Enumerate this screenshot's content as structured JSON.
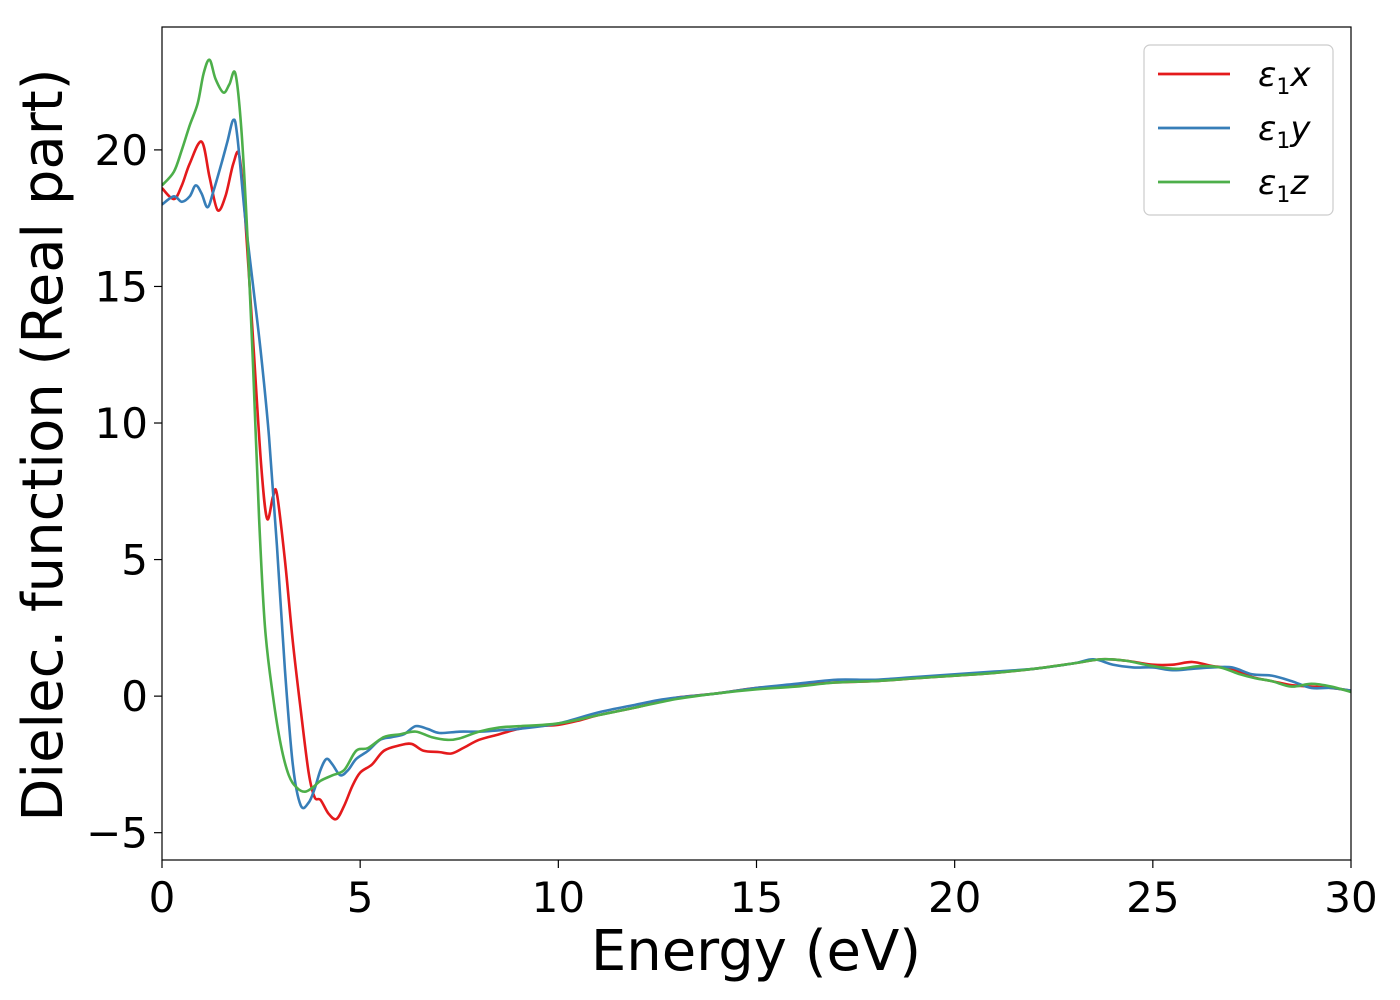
{
  "chart_data": {
    "type": "line",
    "title": "",
    "xlabel": "Energy (eV)",
    "ylabel": "Dielec. function (Real part)",
    "xlim": [
      0,
      30
    ],
    "ylim": [
      -6,
      24.5
    ],
    "xticks": [
      0,
      5,
      10,
      15,
      20,
      25,
      30
    ],
    "yticks": [
      -5,
      0,
      5,
      10,
      15,
      20
    ],
    "xtick_labels": [
      "0",
      "5",
      "10",
      "15",
      "20",
      "25",
      "30"
    ],
    "ytick_labels": [
      "−5",
      "0",
      "5",
      "10",
      "15",
      "20"
    ],
    "grid": false,
    "legend_position": "top-right",
    "series": [
      {
        "name": "ε1x",
        "legend": {
          "base": "ε",
          "sub": "1",
          "axis": "x"
        },
        "color": "#e41a1c",
        "points": [
          [
            0,
            18.6
          ],
          [
            0.3,
            18.2
          ],
          [
            0.5,
            18.7
          ],
          [
            0.7,
            19.5
          ],
          [
            1.0,
            20.3
          ],
          [
            1.2,
            19.0
          ],
          [
            1.4,
            17.8
          ],
          [
            1.6,
            18.3
          ],
          [
            1.8,
            19.5
          ],
          [
            1.95,
            19.8
          ],
          [
            2.1,
            17.5
          ],
          [
            2.3,
            13.0
          ],
          [
            2.5,
            8.5
          ],
          [
            2.65,
            6.5
          ],
          [
            2.8,
            7.3
          ],
          [
            2.9,
            7.4
          ],
          [
            3.1,
            5.0
          ],
          [
            3.3,
            2.0
          ],
          [
            3.5,
            -0.5
          ],
          [
            3.7,
            -2.8
          ],
          [
            3.85,
            -3.7
          ],
          [
            4.0,
            -3.8
          ],
          [
            4.2,
            -4.3
          ],
          [
            4.4,
            -4.5
          ],
          [
            4.6,
            -4.0
          ],
          [
            4.8,
            -3.3
          ],
          [
            5.0,
            -2.8
          ],
          [
            5.3,
            -2.5
          ],
          [
            5.6,
            -2.0
          ],
          [
            6.0,
            -1.8
          ],
          [
            6.3,
            -1.75
          ],
          [
            6.6,
            -2.0
          ],
          [
            7.0,
            -2.05
          ],
          [
            7.3,
            -2.1
          ],
          [
            7.6,
            -1.9
          ],
          [
            8.0,
            -1.6
          ],
          [
            8.5,
            -1.4
          ],
          [
            9.0,
            -1.2
          ],
          [
            9.5,
            -1.1
          ],
          [
            10.0,
            -1.05
          ],
          [
            10.5,
            -0.9
          ],
          [
            11.0,
            -0.7
          ],
          [
            12.0,
            -0.4
          ],
          [
            12.5,
            -0.2
          ],
          [
            13.0,
            -0.05
          ],
          [
            14.0,
            0.1
          ],
          [
            15.0,
            0.3
          ],
          [
            16.0,
            0.4
          ],
          [
            17.0,
            0.5
          ],
          [
            18.0,
            0.55
          ],
          [
            19.0,
            0.65
          ],
          [
            20.0,
            0.75
          ],
          [
            21.0,
            0.85
          ],
          [
            22.0,
            1.0
          ],
          [
            23.0,
            1.2
          ],
          [
            23.7,
            1.35
          ],
          [
            24.3,
            1.3
          ],
          [
            25.0,
            1.15
          ],
          [
            25.5,
            1.15
          ],
          [
            26.0,
            1.25
          ],
          [
            26.5,
            1.1
          ],
          [
            27.0,
            1.0
          ],
          [
            27.5,
            0.7
          ],
          [
            28.0,
            0.55
          ],
          [
            28.5,
            0.4
          ],
          [
            29.0,
            0.35
          ],
          [
            29.5,
            0.3
          ],
          [
            30.0,
            0.2
          ]
        ]
      },
      {
        "name": "ε1y",
        "legend": {
          "base": "ε",
          "sub": "1",
          "axis": "y"
        },
        "color": "#377eb8",
        "points": [
          [
            0,
            18.0
          ],
          [
            0.3,
            18.3
          ],
          [
            0.5,
            18.1
          ],
          [
            0.7,
            18.3
          ],
          [
            0.85,
            18.7
          ],
          [
            1.0,
            18.4
          ],
          [
            1.15,
            17.9
          ],
          [
            1.3,
            18.5
          ],
          [
            1.5,
            19.5
          ],
          [
            1.65,
            20.3
          ],
          [
            1.8,
            21.1
          ],
          [
            1.9,
            20.5
          ],
          [
            2.1,
            17.5
          ],
          [
            2.3,
            15.0
          ],
          [
            2.5,
            12.5
          ],
          [
            2.7,
            9.5
          ],
          [
            2.9,
            5.5
          ],
          [
            3.1,
            1.0
          ],
          [
            3.3,
            -2.5
          ],
          [
            3.5,
            -4.0
          ],
          [
            3.7,
            -3.9
          ],
          [
            3.85,
            -3.4
          ],
          [
            4.0,
            -2.7
          ],
          [
            4.15,
            -2.3
          ],
          [
            4.3,
            -2.5
          ],
          [
            4.5,
            -2.9
          ],
          [
            4.7,
            -2.7
          ],
          [
            4.9,
            -2.3
          ],
          [
            5.2,
            -2.0
          ],
          [
            5.5,
            -1.6
          ],
          [
            5.8,
            -1.5
          ],
          [
            6.1,
            -1.4
          ],
          [
            6.4,
            -1.1
          ],
          [
            6.7,
            -1.2
          ],
          [
            7.0,
            -1.35
          ],
          [
            7.5,
            -1.3
          ],
          [
            8.0,
            -1.3
          ],
          [
            8.5,
            -1.25
          ],
          [
            9.0,
            -1.2
          ],
          [
            10.0,
            -1.0
          ],
          [
            11.0,
            -0.6
          ],
          [
            12.0,
            -0.3
          ],
          [
            12.5,
            -0.15
          ],
          [
            13.0,
            -0.05
          ],
          [
            14.0,
            0.1
          ],
          [
            15.0,
            0.3
          ],
          [
            16.0,
            0.45
          ],
          [
            17.0,
            0.6
          ],
          [
            18.0,
            0.6
          ],
          [
            19.0,
            0.7
          ],
          [
            20.0,
            0.8
          ],
          [
            21.0,
            0.9
          ],
          [
            22.0,
            1.0
          ],
          [
            23.0,
            1.2
          ],
          [
            23.5,
            1.35
          ],
          [
            24.0,
            1.15
          ],
          [
            24.5,
            1.05
          ],
          [
            25.0,
            1.05
          ],
          [
            25.5,
            0.95
          ],
          [
            26.0,
            1.0
          ],
          [
            26.5,
            1.05
          ],
          [
            27.0,
            1.05
          ],
          [
            27.5,
            0.8
          ],
          [
            28.0,
            0.75
          ],
          [
            28.5,
            0.55
          ],
          [
            29.0,
            0.3
          ],
          [
            29.5,
            0.3
          ],
          [
            30.0,
            0.2
          ]
        ]
      },
      {
        "name": "ε1z",
        "legend": {
          "base": "ε",
          "sub": "1",
          "axis": "z"
        },
        "color": "#4daf4a",
        "points": [
          [
            0,
            18.7
          ],
          [
            0.3,
            19.2
          ],
          [
            0.5,
            20.0
          ],
          [
            0.7,
            20.9
          ],
          [
            0.9,
            21.7
          ],
          [
            1.05,
            22.8
          ],
          [
            1.2,
            23.3
          ],
          [
            1.35,
            22.6
          ],
          [
            1.55,
            22.1
          ],
          [
            1.7,
            22.4
          ],
          [
            1.85,
            22.8
          ],
          [
            2.0,
            20.8
          ],
          [
            2.15,
            17.0
          ],
          [
            2.3,
            12.0
          ],
          [
            2.45,
            6.5
          ],
          [
            2.6,
            2.5
          ],
          [
            2.8,
            0.0
          ],
          [
            3.0,
            -1.8
          ],
          [
            3.2,
            -2.9
          ],
          [
            3.4,
            -3.35
          ],
          [
            3.6,
            -3.5
          ],
          [
            3.8,
            -3.35
          ],
          [
            4.0,
            -3.1
          ],
          [
            4.3,
            -2.9
          ],
          [
            4.6,
            -2.7
          ],
          [
            4.9,
            -2.0
          ],
          [
            5.2,
            -1.9
          ],
          [
            5.6,
            -1.5
          ],
          [
            6.0,
            -1.4
          ],
          [
            6.4,
            -1.3
          ],
          [
            6.8,
            -1.5
          ],
          [
            7.2,
            -1.6
          ],
          [
            7.5,
            -1.55
          ],
          [
            8.0,
            -1.3
          ],
          [
            8.5,
            -1.15
          ],
          [
            9.0,
            -1.1
          ],
          [
            10.0,
            -1.0
          ],
          [
            11.0,
            -0.7
          ],
          [
            12.0,
            -0.4
          ],
          [
            13.0,
            -0.1
          ],
          [
            14.0,
            0.1
          ],
          [
            15.0,
            0.25
          ],
          [
            16.0,
            0.35
          ],
          [
            17.0,
            0.5
          ],
          [
            18.0,
            0.55
          ],
          [
            19.0,
            0.65
          ],
          [
            20.0,
            0.75
          ],
          [
            21.0,
            0.85
          ],
          [
            22.0,
            1.0
          ],
          [
            23.0,
            1.2
          ],
          [
            23.7,
            1.35
          ],
          [
            24.3,
            1.3
          ],
          [
            25.0,
            1.1
          ],
          [
            25.6,
            1.0
          ],
          [
            26.2,
            1.1
          ],
          [
            26.7,
            1.05
          ],
          [
            27.2,
            0.8
          ],
          [
            27.6,
            0.65
          ],
          [
            28.0,
            0.55
          ],
          [
            28.5,
            0.35
          ],
          [
            29.0,
            0.45
          ],
          [
            29.5,
            0.35
          ],
          [
            30.0,
            0.15
          ]
        ]
      }
    ]
  }
}
